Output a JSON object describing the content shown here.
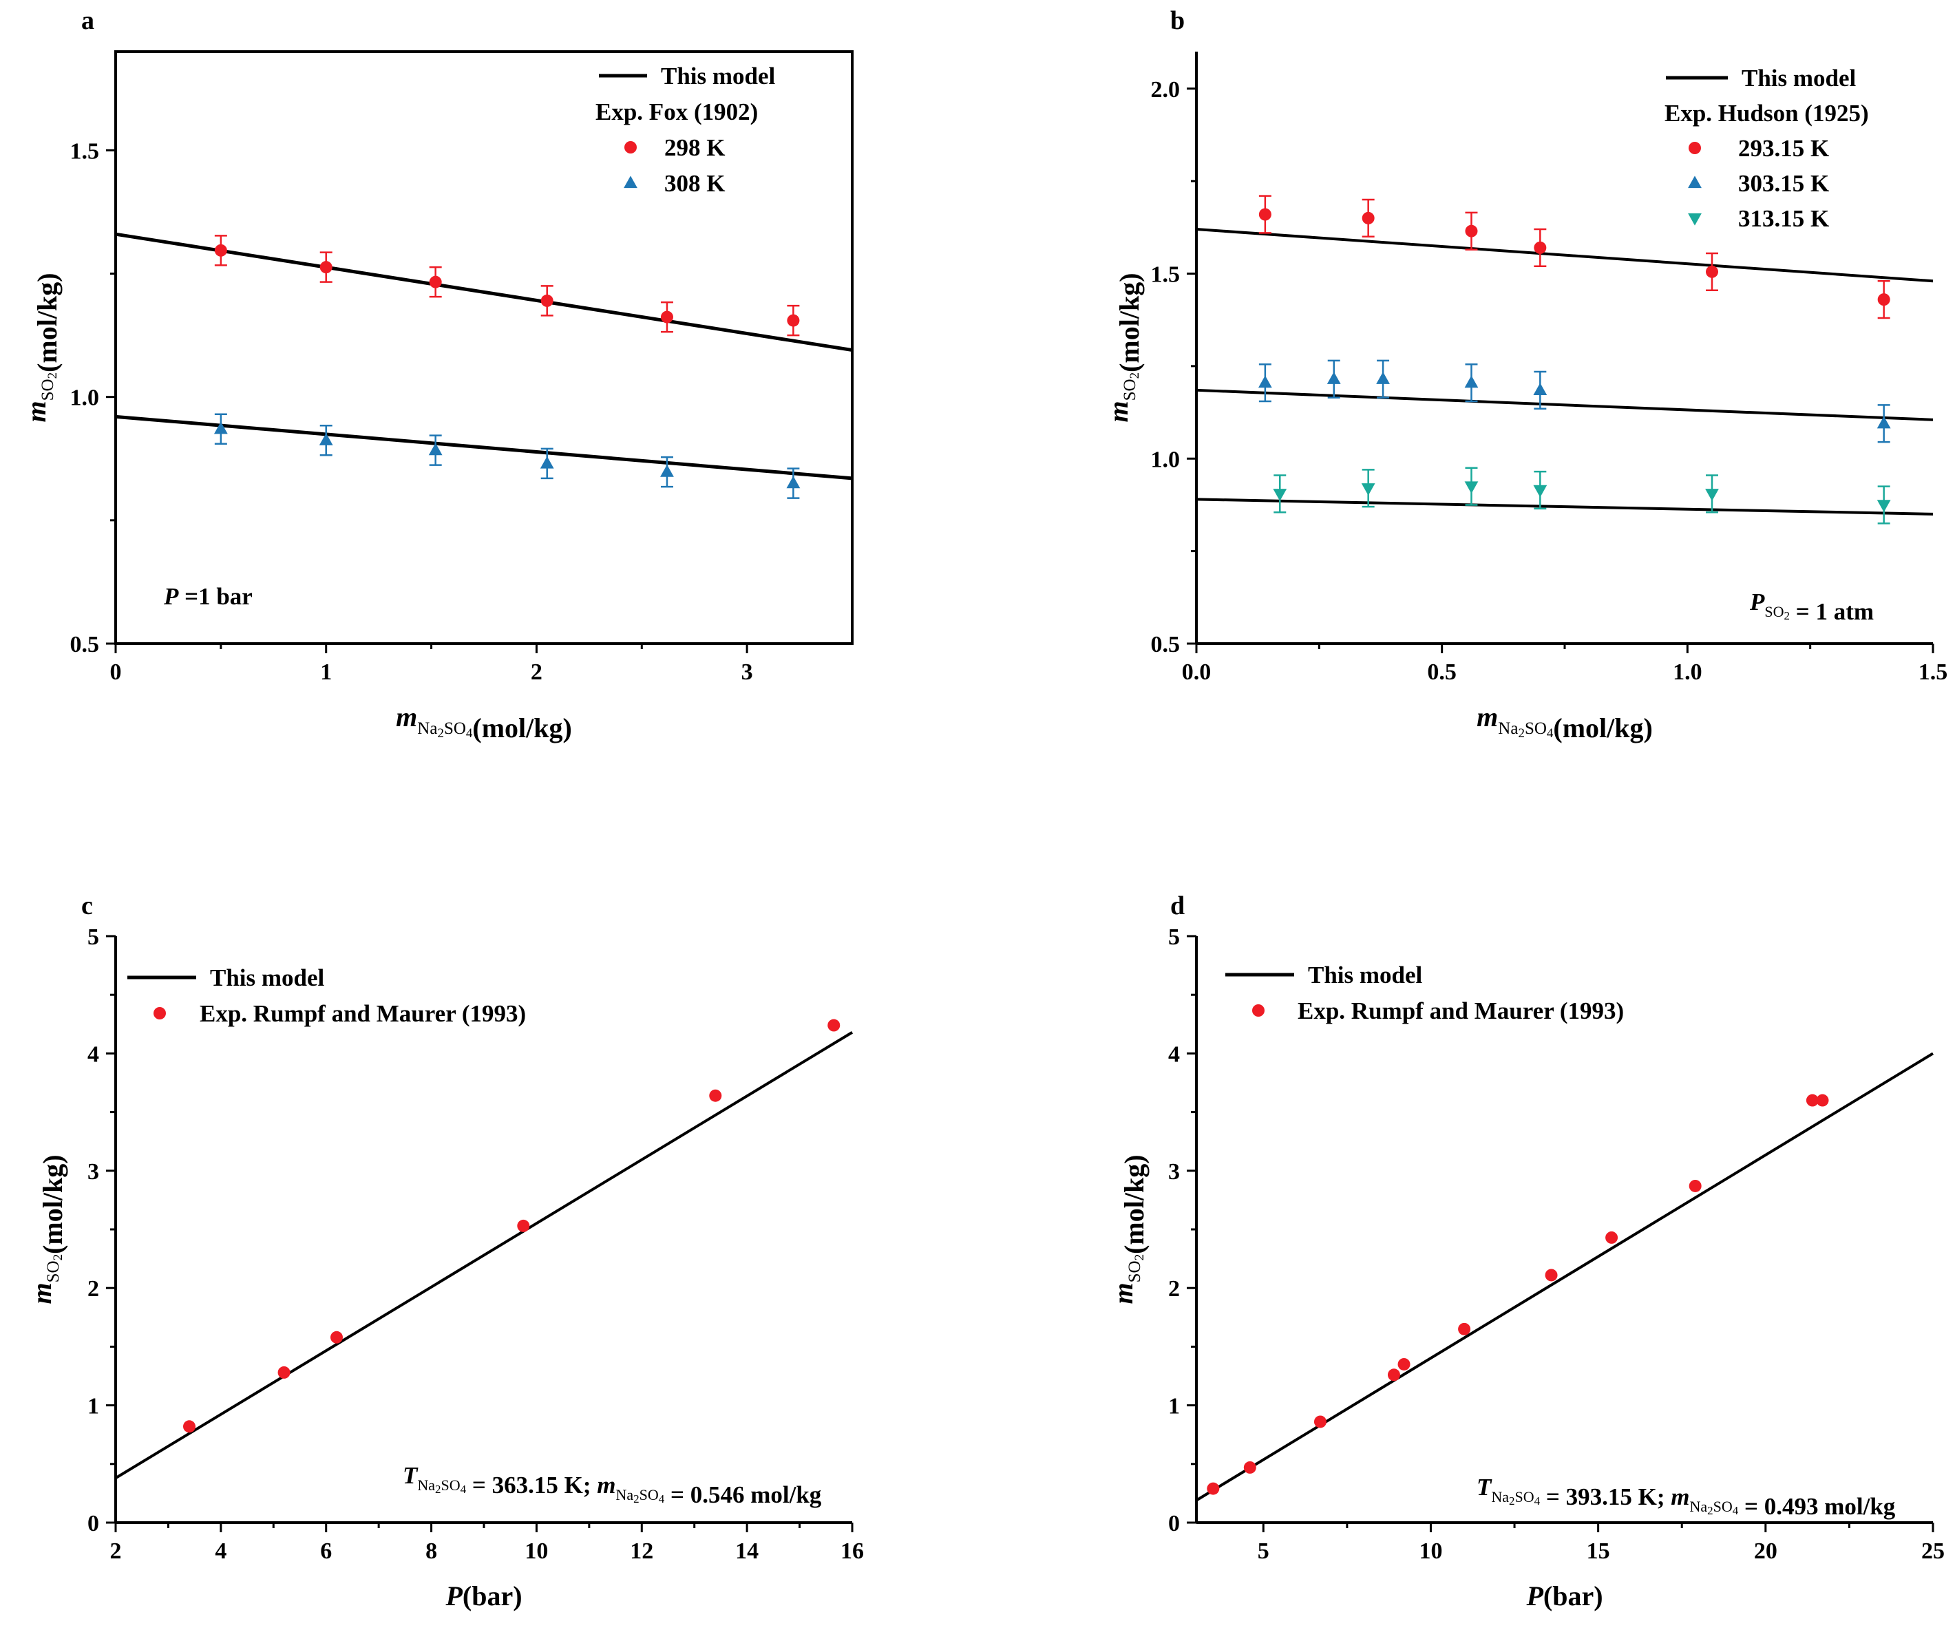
{
  "colors": {
    "red": "#ee1c25",
    "blue": "#1f77b4",
    "teal": "#1aa99a",
    "black": "#000000"
  },
  "chart_data": [
    {
      "type": "scatter",
      "panel_label": "a",
      "xlabel": {
        "italic": "m",
        "sub": "Na2SO4",
        "unit": "(mol/kg)"
      },
      "ylabel": {
        "italic": "m",
        "sub": "SO2",
        "unit": "(mol/kg)"
      },
      "xlim": [
        0,
        3.5
      ],
      "ylim": [
        0.5,
        1.7
      ],
      "xticks": [
        0,
        1,
        2,
        3
      ],
      "xtick_labels": [
        "0",
        "1",
        "2",
        "3"
      ],
      "yticks": [
        0.5,
        1.0,
        1.5
      ],
      "ytick_labels": [
        "0.5",
        "1.0",
        "1.5"
      ],
      "frame": "box",
      "legend": {
        "position": "top-right",
        "line_label": "This model",
        "heading": "Exp. Fox (1902)",
        "entries": [
          "298 K",
          "308 K"
        ]
      },
      "annotation": {
        "position": "bottom-left",
        "italic": "P",
        "text": " =1 bar"
      },
      "lines": [
        {
          "x": [
            0,
            3.5
          ],
          "y": [
            1.33,
            1.095
          ]
        },
        {
          "x": [
            0,
            3.5
          ],
          "y": [
            0.96,
            0.835
          ]
        }
      ],
      "series": [
        {
          "name": "298 K",
          "marker": "circle",
          "color": "#ee1c25",
          "x": [
            0.5,
            1.0,
            1.52,
            2.05,
            2.62,
            3.22
          ],
          "y": [
            1.297,
            1.263,
            1.233,
            1.195,
            1.162,
            1.155
          ],
          "err": [
            0.03,
            0.03,
            0.03,
            0.03,
            0.03,
            0.03
          ]
        },
        {
          "name": "308 K",
          "marker": "triangle-up",
          "color": "#1f77b4",
          "x": [
            0.5,
            1.0,
            1.52,
            2.05,
            2.62,
            3.22
          ],
          "y": [
            0.935,
            0.912,
            0.892,
            0.865,
            0.848,
            0.825
          ],
          "err": [
            0.03,
            0.03,
            0.03,
            0.03,
            0.03,
            0.03
          ]
        }
      ]
    },
    {
      "type": "scatter",
      "panel_label": "b",
      "xlabel": {
        "italic": "m",
        "sub": "Na2SO4",
        "unit": "(mol/kg)"
      },
      "ylabel": {
        "italic": "m",
        "sub": "SO2",
        "unit": "(mol/kg)"
      },
      "xlim": [
        0,
        1.5
      ],
      "ylim": [
        0.5,
        2.1
      ],
      "xticks": [
        0,
        0.5,
        1.0,
        1.5
      ],
      "xtick_labels": [
        "0.0",
        "0.5",
        "1.0",
        "1.5"
      ],
      "yticks": [
        0.5,
        1.0,
        1.5,
        2.0
      ],
      "ytick_labels": [
        "0.5",
        "1.0",
        "1.5",
        "2.0"
      ],
      "frame": "axes",
      "legend": {
        "position": "top-right",
        "line_label": "This model",
        "heading": "Exp. Hudson (1925)",
        "entries": [
          "293.15 K",
          "303.15 K",
          "313.15 K"
        ]
      },
      "annotation": {
        "position": "bottom-right",
        "italic": "P",
        "sub": "SO2",
        "text": " = 1 atm"
      },
      "lines": [
        {
          "x": [
            0,
            1.5
          ],
          "y": [
            1.62,
            1.48
          ]
        },
        {
          "x": [
            0,
            1.5
          ],
          "y": [
            1.185,
            1.105
          ]
        },
        {
          "x": [
            0,
            1.5
          ],
          "y": [
            0.89,
            0.85
          ]
        }
      ],
      "series": [
        {
          "name": "293.15 K",
          "marker": "circle",
          "color": "#ee1c25",
          "x": [
            0.14,
            0.35,
            0.56,
            0.7,
            1.05,
            1.4
          ],
          "y": [
            1.66,
            1.65,
            1.615,
            1.57,
            1.505,
            1.43
          ],
          "err": [
            0.05,
            0.05,
            0.05,
            0.05,
            0.05,
            0.05
          ]
        },
        {
          "name": "303.15 K",
          "marker": "triangle-up",
          "color": "#1f77b4",
          "x": [
            0.14,
            0.28,
            0.38,
            0.56,
            0.7,
            1.4
          ],
          "y": [
            1.205,
            1.215,
            1.215,
            1.205,
            1.185,
            1.095
          ],
          "err": [
            0.05,
            0.05,
            0.05,
            0.05,
            0.05,
            0.05
          ]
        },
        {
          "name": "313.15 K",
          "marker": "triangle-down",
          "color": "#1aa99a",
          "x": [
            0.17,
            0.35,
            0.56,
            0.7,
            1.05,
            1.4
          ],
          "y": [
            0.905,
            0.92,
            0.925,
            0.915,
            0.905,
            0.875
          ],
          "err": [
            0.05,
            0.05,
            0.05,
            0.05,
            0.05,
            0.05
          ]
        }
      ]
    },
    {
      "type": "scatter",
      "panel_label": "c",
      "xlabel": {
        "italic": "P",
        "unit": "(bar)"
      },
      "ylabel": {
        "italic": "m",
        "sub": "SO2",
        "unit": "(mol/kg)"
      },
      "xlim": [
        2,
        16
      ],
      "ylim": [
        0,
        5
      ],
      "xticks": [
        2,
        4,
        6,
        8,
        10,
        12,
        14,
        16
      ],
      "xtick_labels": [
        "2",
        "4",
        "6",
        "8",
        "10",
        "12",
        "14",
        "16"
      ],
      "yticks": [
        0,
        1,
        2,
        3,
        4,
        5
      ],
      "ytick_labels": [
        "0",
        "1",
        "2",
        "3",
        "4",
        "5"
      ],
      "frame": "axes",
      "legend": {
        "position": "top-left",
        "line_label": "This model",
        "entries": [
          "Exp. Rumpf and Maurer (1993)"
        ]
      },
      "annotation": {
        "position": "bottom-right",
        "italic": "T",
        "text": " = 363.15 K; ",
        "italic2": "m",
        "sub": "Na2SO4",
        "text2": " = 0.546 mol/kg"
      },
      "lines": [
        {
          "x": [
            2,
            16
          ],
          "y": [
            0.38,
            4.18
          ]
        }
      ],
      "series": [
        {
          "name": "Exp. Rumpf and Maurer (1993)",
          "marker": "circle",
          "color": "#ee1c25",
          "x": [
            3.4,
            5.2,
            6.2,
            9.75,
            13.4,
            15.65
          ],
          "y": [
            0.82,
            1.28,
            1.58,
            2.53,
            3.64,
            4.24
          ]
        }
      ]
    },
    {
      "type": "scatter",
      "panel_label": "d",
      "xlabel": {
        "italic": "P",
        "unit": "(bar)"
      },
      "ylabel": {
        "italic": "m",
        "sub": "SO2",
        "unit": "(mol/kg)"
      },
      "xlim": [
        3,
        25
      ],
      "ylim": [
        0,
        5
      ],
      "xticks": [
        5,
        10,
        15,
        20,
        25
      ],
      "xtick_labels": [
        "5",
        "10",
        "15",
        "20",
        "25"
      ],
      "yticks": [
        0,
        1,
        2,
        3,
        4,
        5
      ],
      "ytick_labels": [
        "0",
        "1",
        "2",
        "3",
        "4",
        "5"
      ],
      "frame": "axes",
      "legend": {
        "position": "top-left",
        "line_label": "This model",
        "entries": [
          "Exp. Rumpf and Maurer (1993)"
        ]
      },
      "annotation": {
        "position": "bottom-right",
        "italic": "T",
        "text": " = 393.15 K; ",
        "italic2": "m",
        "sub": "Na2SO4",
        "text2": " = 0.493 mol/kg"
      },
      "lines": [
        {
          "x": [
            3,
            25
          ],
          "y": [
            0.19,
            4.0
          ]
        }
      ],
      "series": [
        {
          "name": "Exp. Rumpf and Maurer (1993)",
          "marker": "circle",
          "color": "#ee1c25",
          "x": [
            3.5,
            4.6,
            6.7,
            8.9,
            9.2,
            11.0,
            13.6,
            15.4,
            17.9,
            21.4,
            21.7
          ],
          "y": [
            0.29,
            0.47,
            0.86,
            1.26,
            1.35,
            1.65,
            2.11,
            2.43,
            2.87,
            3.6,
            3.6
          ]
        }
      ]
    }
  ]
}
